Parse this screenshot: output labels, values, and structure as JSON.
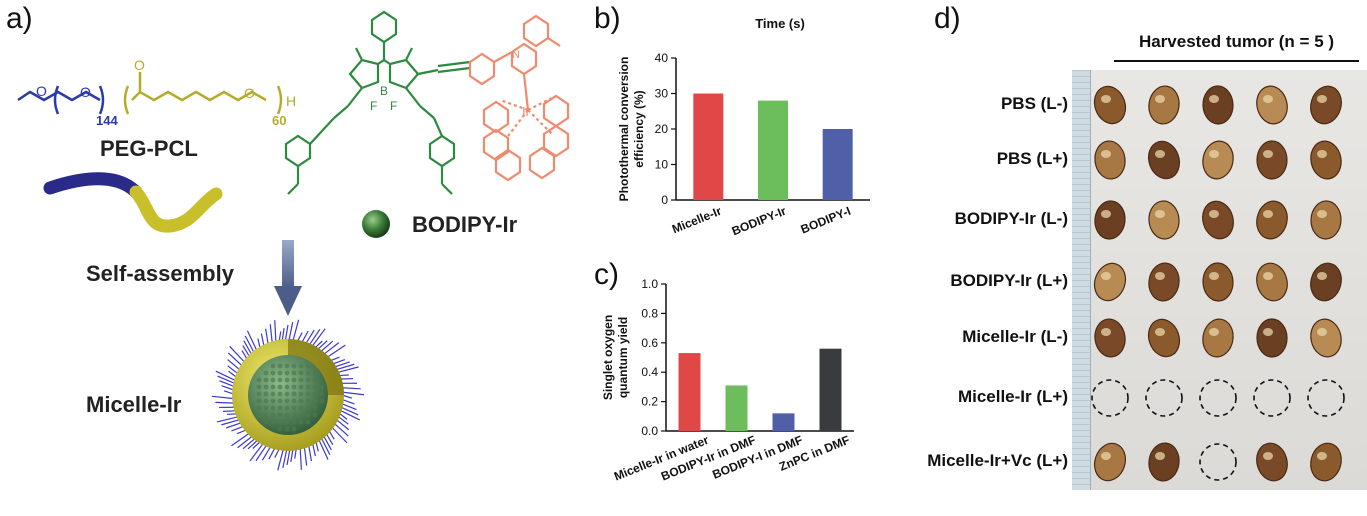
{
  "panels": {
    "a": {
      "label": "a)",
      "polymer_name": "PEG-PCL",
      "peg_subscript": "144",
      "pcl_subscript": "60",
      "chain_atoms": {
        "o1": "O",
        "o2": "O",
        "o3": "O",
        "o4": "O",
        "h": "H"
      },
      "dye_name": "BODIPY-Ir",
      "dye_atoms": {
        "b": "B",
        "f1": "F",
        "f2": "F",
        "ir": "Ir",
        "n": "N"
      },
      "process": "Self-assembly",
      "product": "Micelle-Ir"
    },
    "b": {
      "label": "b)"
    },
    "c": {
      "label": "c)"
    },
    "d": {
      "label": "d)",
      "header": "Harvested tumor (n = 5 )",
      "rows": [
        {
          "label": "PBS (L-)",
          "tumors": [
            1,
            1,
            1,
            1,
            1
          ]
        },
        {
          "label": "PBS (L+)",
          "tumors": [
            1,
            1,
            1,
            1,
            1
          ]
        },
        {
          "label": "BODIPY-Ir (L-)",
          "tumors": [
            1,
            1,
            1,
            1,
            1
          ]
        },
        {
          "label": "BODIPY-Ir (L+)",
          "tumors": [
            1,
            1,
            1,
            1,
            1
          ]
        },
        {
          "label": "Micelle-Ir (L-)",
          "tumors": [
            1,
            1,
            1,
            1,
            1
          ]
        },
        {
          "label": "Micelle-Ir (L+)",
          "tumors": [
            0,
            0,
            0,
            0,
            0
          ]
        },
        {
          "label": "Micelle-Ir+Vc (L+)",
          "tumors": [
            1,
            1,
            0,
            1,
            1
          ]
        }
      ]
    }
  },
  "chart_data": [
    {
      "type": "bar",
      "title": "Time (s)",
      "ylabel": "Photothermal conversion efficiency (%)",
      "categories": [
        "Micelle-Ir",
        "BODIPY-Ir",
        "BODIPY-I"
      ],
      "values": [
        30,
        28,
        20
      ],
      "colors": [
        "#e04848",
        "#6dbd5c",
        "#4f5fa8"
      ],
      "ylim": [
        0,
        40
      ],
      "yticks": [
        0,
        10,
        20,
        30,
        40
      ]
    },
    {
      "type": "bar",
      "ylabel": "Singlet oxygen quantum yield",
      "categories": [
        "Micelle-Ir in water",
        "BODIPY-Ir in DMF",
        "BODIPY-I in DMF",
        "ZnPC in DMF"
      ],
      "values": [
        0.53,
        0.31,
        0.12,
        0.56
      ],
      "colors": [
        "#e04848",
        "#6dbd5c",
        "#4f5fa8",
        "#3a3b3e"
      ],
      "ylim": [
        0,
        1.0
      ],
      "yticks": [
        0.0,
        0.2,
        0.4,
        0.6,
        0.8,
        1.0
      ]
    }
  ]
}
